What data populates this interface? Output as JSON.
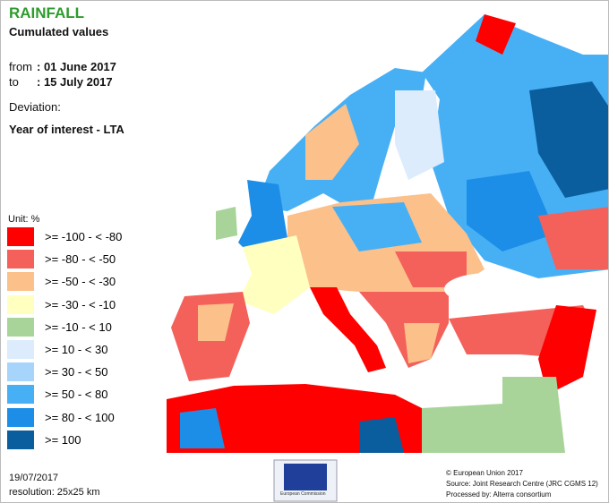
{
  "title": "RAINFALL",
  "subtitle": "Cumulated values",
  "period": {
    "from_label": "from",
    "from": ": 01 June 2017",
    "to_label": "to",
    "to": ": 15 July 2017"
  },
  "deviation": {
    "label": "Deviation:",
    "value": "Year of interest - LTA"
  },
  "legend": {
    "unit": "Unit: %",
    "items": [
      {
        "label": ">= -100 - < -80",
        "color": "#ff0000"
      },
      {
        "label": ">= -80 - < -50",
        "color": "#f4605a"
      },
      {
        "label": ">= -50 - < -30",
        "color": "#fcc08a"
      },
      {
        "label": ">= -30 - < -10",
        "color": "#ffffc0"
      },
      {
        "label": ">= -10 - < 10",
        "color": "#a8d49a"
      },
      {
        "label": ">= 10 - < 30",
        "color": "#dcecfc"
      },
      {
        "label": ">= 30 - < 50",
        "color": "#a6d4fa"
      },
      {
        "label": ">= 50 - < 80",
        "color": "#47b0f5"
      },
      {
        "label": ">= 80 - < 100",
        "color": "#1c8ee8"
      },
      {
        "label": ">= 100",
        "color": "#0b5e9e"
      }
    ]
  },
  "footer": {
    "date": "19/07/2017",
    "resolution": "resolution: 25x25 km",
    "logo": "European Commission",
    "copyright": "© European Union 2017",
    "source": "Source: Joint Research Centre (JRC CGMS 12)",
    "processed": "Processed by: Alterra consortium"
  }
}
